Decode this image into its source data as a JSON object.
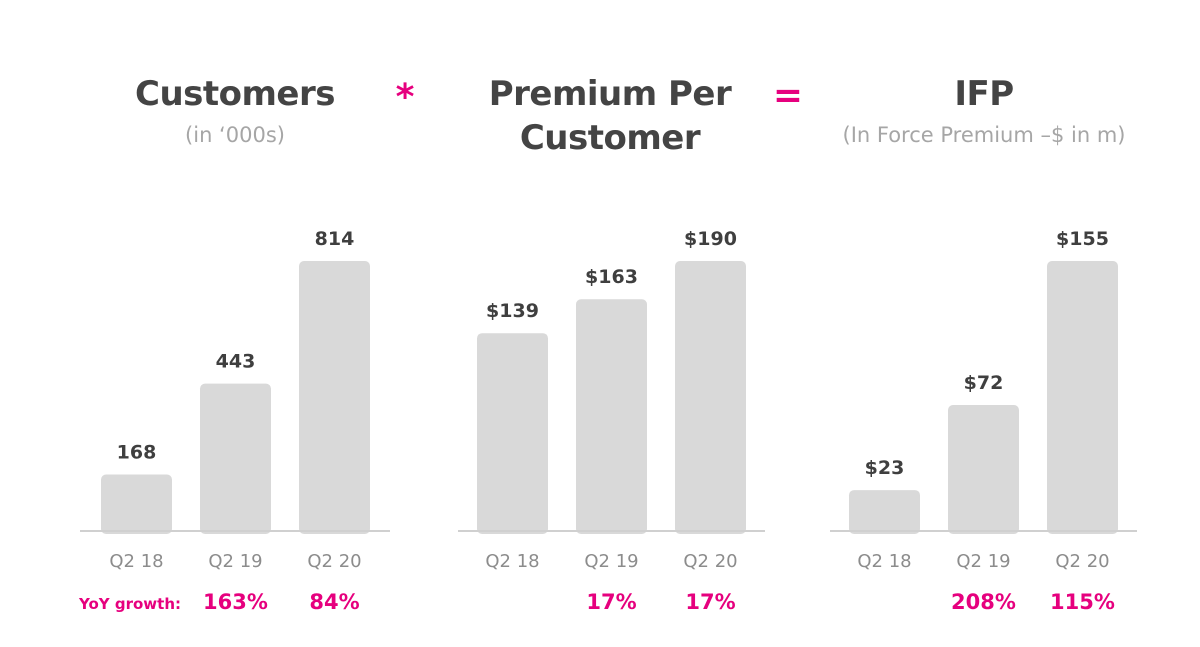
{
  "headers": [
    {
      "title": "Customers",
      "subtitle": "(in ‘000s)"
    },
    {
      "title": "Premium Per Customer",
      "subtitle": ""
    },
    {
      "title": "IFP",
      "subtitle": "(In Force Premium –$ in m)"
    }
  ],
  "operators": {
    "multiply": "*",
    "equals": "="
  },
  "yoy_label": "YoY growth:",
  "colors": {
    "bar": "#d9d9d9",
    "axis": "#d0d0d0",
    "accent": "#e6007e",
    "value_text": "#3f3f3f",
    "tick_text": "#8c8c8c"
  },
  "chart_data": [
    {
      "type": "bar",
      "title": "Customers",
      "subtitle": "(in ‘000s)",
      "categories": [
        "Q2 18",
        "Q2 19",
        "Q2 20"
      ],
      "values": [
        168,
        443,
        814
      ],
      "labels": [
        "168",
        "443",
        "814"
      ],
      "yoy_growth": [
        "",
        "163%",
        "84%"
      ]
    },
    {
      "type": "bar",
      "title": "Premium Per Customer",
      "categories": [
        "Q2 18",
        "Q2 19",
        "Q2 20"
      ],
      "values": [
        139,
        163,
        190
      ],
      "labels": [
        "$139",
        "$163",
        "$190"
      ],
      "yoy_growth": [
        "",
        "17%",
        "17%"
      ]
    },
    {
      "type": "bar",
      "title": "IFP",
      "subtitle": "(In Force Premium –$ in m)",
      "categories": [
        "Q2 18",
        "Q2 19",
        "Q2 20"
      ],
      "values": [
        23,
        72,
        155
      ],
      "labels": [
        "$23",
        "$72",
        "$155"
      ],
      "yoy_growth": [
        "",
        "208%",
        "115%"
      ]
    }
  ]
}
